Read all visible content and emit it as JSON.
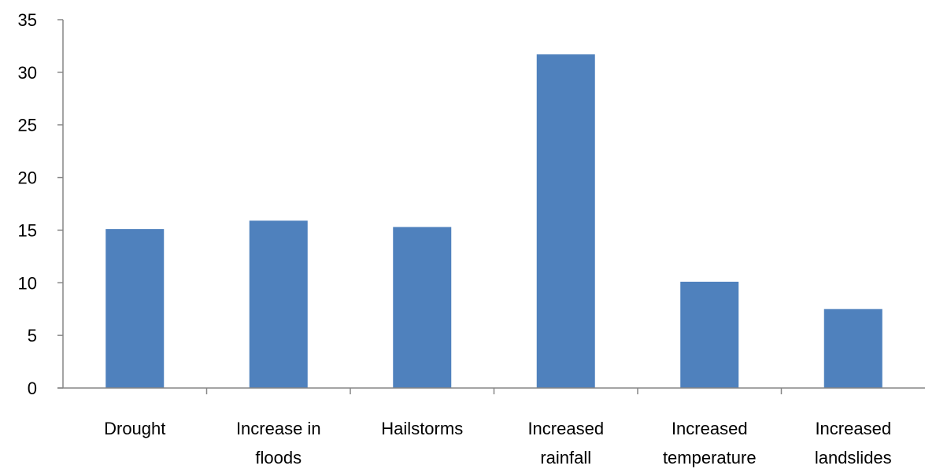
{
  "chart_data": {
    "type": "bar",
    "categories": [
      [
        "Drought"
      ],
      [
        "Increase in",
        "floods"
      ],
      [
        "Hailstorms"
      ],
      [
        "Increased",
        "rainfall"
      ],
      [
        "Increased",
        "temperature"
      ],
      [
        "Increased",
        "landslides"
      ]
    ],
    "values": [
      15.1,
      15.9,
      15.3,
      31.7,
      10.1,
      7.5
    ],
    "ylim": [
      0,
      35
    ],
    "yticks": [
      0,
      5,
      10,
      15,
      20,
      25,
      30,
      35
    ],
    "grid": false,
    "legend": "none",
    "title": "",
    "xlabel": "",
    "ylabel": "",
    "colors": {
      "bar": "#4F81BD",
      "axis": "#868686",
      "text": "#000000"
    }
  }
}
